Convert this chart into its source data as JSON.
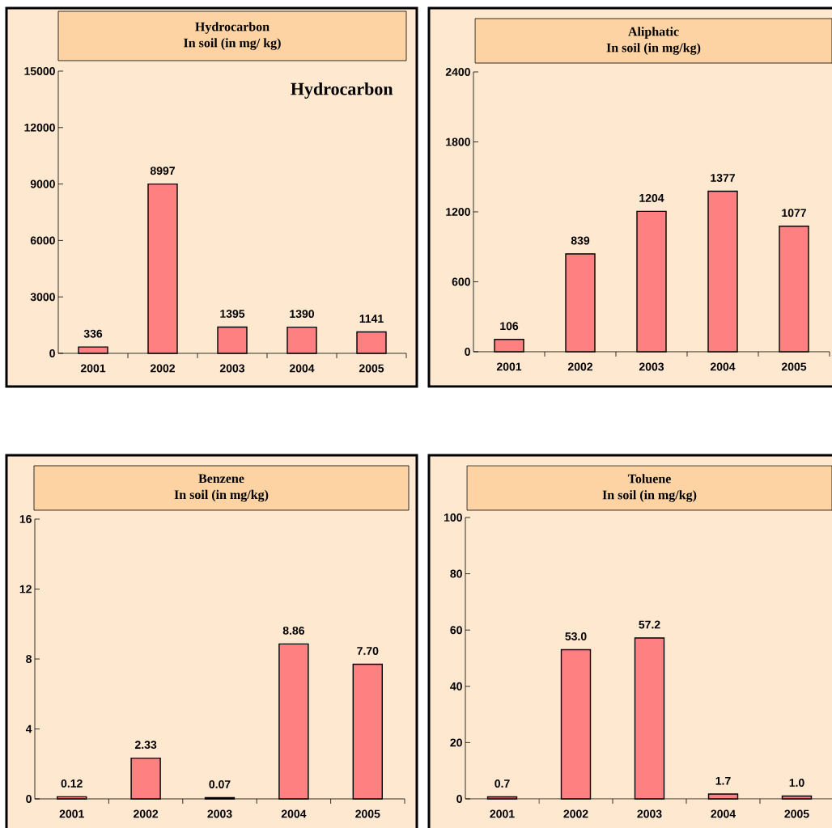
{
  "chart_data": [
    {
      "type": "bar",
      "title": "Hydrocarbon",
      "subtitle": "In soil (in mg/ kg)",
      "categories": [
        "2001",
        "2002",
        "2003",
        "2004",
        "2005"
      ],
      "values": [
        336,
        8997,
        1395,
        1390,
        1141
      ],
      "value_labels": [
        "336",
        "8997",
        "1395",
        "1390",
        "1141"
      ],
      "color": "#ff8080",
      "ylim": [
        0,
        15000
      ],
      "yticks": [
        0,
        3000,
        6000,
        9000,
        12000,
        15000
      ],
      "annotations": [
        "Hydrocarbon"
      ]
    },
    {
      "type": "bar",
      "title": "Aliphatic",
      "subtitle": "In soil (in mg/kg)",
      "categories": [
        "2001",
        "2002",
        "2003",
        "2004",
        "2005"
      ],
      "values": [
        106,
        839,
        1204,
        1377,
        1077
      ],
      "value_labels": [
        "106",
        "839",
        "1204",
        "1377",
        "1077"
      ],
      "color": "#ff8080",
      "ylim": [
        0,
        2400
      ],
      "yticks": [
        0,
        600,
        1200,
        1800,
        2400
      ]
    },
    {
      "type": "bar",
      "title": "Benzene",
      "subtitle": "In soil (in mg/kg)",
      "categories": [
        "2001",
        "2002",
        "2003",
        "2004",
        "2005"
      ],
      "values": [
        0.12,
        2.33,
        0.07,
        8.86,
        7.7
      ],
      "value_labels": [
        "0.12",
        "2.33",
        "0.07",
        "8.86",
        "7.70"
      ],
      "color": "#ff8080",
      "ylim": [
        0,
        16
      ],
      "yticks": [
        0,
        4,
        8,
        12,
        16
      ]
    },
    {
      "type": "bar",
      "title": "Toluene",
      "subtitle": "In soil (in mg/kg)",
      "categories": [
        "2001",
        "2002",
        "2003",
        "2004",
        "2005"
      ],
      "values": [
        0.7,
        53.0,
        57.2,
        1.7,
        1.0
      ],
      "value_labels": [
        "0.7",
        "53.0",
        "57.2",
        "1.7",
        "1.0"
      ],
      "color": "#ff8080",
      "ylim": [
        0,
        100
      ],
      "yticks": [
        0,
        20,
        40,
        60,
        80,
        100
      ]
    }
  ]
}
